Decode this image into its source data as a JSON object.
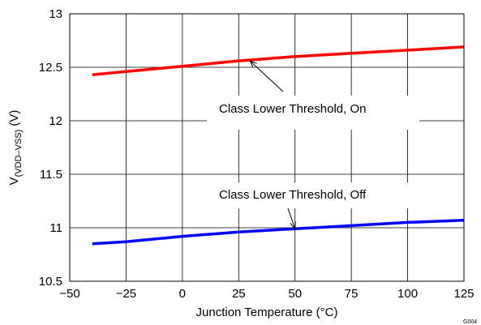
{
  "chart_data": {
    "type": "line",
    "xlabel": "Junction Temperature (°C)",
    "ylabel_main": "V",
    "ylabel_sub": "(VDD–VSS)",
    "ylabel_unit": "(V)",
    "xlim": [
      -50,
      125
    ],
    "ylim": [
      10.5,
      13
    ],
    "x_ticks": [
      -50,
      -25,
      0,
      25,
      50,
      75,
      100,
      125
    ],
    "x_tick_labels": [
      "−50",
      "−25",
      "0",
      "25",
      "50",
      "75",
      "100",
      "125"
    ],
    "y_ticks": [
      10.5,
      11,
      11.5,
      12,
      12.5,
      13
    ],
    "y_tick_labels": [
      "10.5",
      "11",
      "11.5",
      "12",
      "12.5",
      "13"
    ],
    "grid": true,
    "series": [
      {
        "color": "#ff0000",
        "x": [
          -40,
          -25,
          0,
          25,
          50,
          75,
          100,
          125
        ],
        "y": [
          12.43,
          12.46,
          12.51,
          12.56,
          12.6,
          12.63,
          12.66,
          12.69
        ]
      },
      {
        "color": "#0000ff",
        "x": [
          -40,
          -25,
          0,
          25,
          50,
          75,
          100,
          125
        ],
        "y": [
          10.85,
          10.87,
          10.92,
          10.96,
          10.99,
          11.02,
          11.05,
          11.07
        ]
      }
    ],
    "annotations": [
      {
        "text": "Class Lower Threshold, On",
        "arrow_to": [
          30,
          12.56
        ]
      },
      {
        "text": "Class Lower Threshold, Off",
        "arrow_to": [
          50,
          10.99
        ]
      }
    ],
    "figure_id": "G004"
  }
}
